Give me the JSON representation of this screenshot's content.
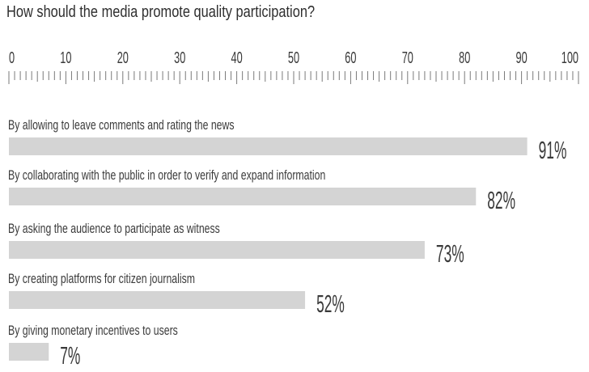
{
  "chart_data": {
    "type": "bar",
    "orientation": "horizontal",
    "title": "How should the media promote quality participation?",
    "xlim": [
      0,
      100
    ],
    "ticks": [
      "0",
      "10",
      "20",
      "30",
      "40",
      "50",
      "60",
      "70",
      "80",
      "90",
      "100"
    ],
    "categories": [
      "By allowing to leave comments and rating the news",
      "By collaborating with the public in order to verify and expand information",
      "By asking the audience to participate as witness",
      "By creating platforms for citizen journalism",
      "By giving monetary incentives to users"
    ],
    "values": [
      91,
      82,
      73,
      52,
      7
    ],
    "value_labels": [
      "91%",
      "82%",
      "73%",
      "52%",
      "7%"
    ],
    "bar_color": "#d4d4d4",
    "text_color": "#333333",
    "grid": false,
    "legend": "none"
  }
}
